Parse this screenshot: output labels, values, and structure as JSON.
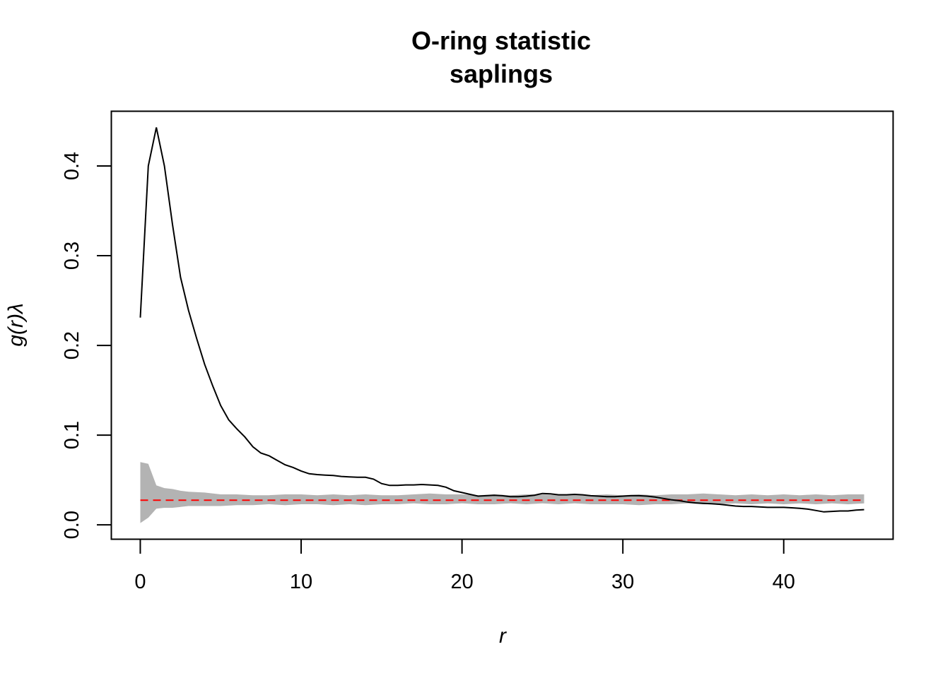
{
  "chart_data": {
    "type": "line",
    "title": "O-ring statistic",
    "subtitle": "saplings",
    "xlabel": "r",
    "ylabel": "g(r)λ",
    "xlim": [
      -1.8,
      46.8
    ],
    "ylim": [
      -0.016,
      0.461
    ],
    "xticks": [
      0,
      10,
      20,
      30,
      40
    ],
    "yticks": [
      0.0,
      0.1,
      0.2,
      0.3,
      0.4
    ],
    "ytick_labels": [
      "0.0",
      "0.1",
      "0.2",
      "0.3",
      "0.4"
    ],
    "grid": false,
    "legend": "none",
    "colors": {
      "observed": "#000000",
      "theoretical": "#ff0000",
      "envelope": "#b3b3b3",
      "frame": "#000000"
    },
    "series": [
      {
        "role": "observed",
        "style": "solid",
        "x": [
          0,
          0.5,
          1,
          1.5,
          2,
          2.5,
          3,
          3.5,
          4,
          4.5,
          5,
          5.5,
          6,
          6.5,
          7,
          7.5,
          8,
          8.5,
          9,
          9.5,
          10,
          10.5,
          11,
          11.5,
          12,
          12.5,
          13,
          13.5,
          14,
          14.5,
          15,
          15.5,
          16,
          16.5,
          17,
          17.5,
          18,
          18.5,
          19,
          19.5,
          20,
          20.5,
          21,
          21.5,
          22,
          22.5,
          23,
          23.5,
          24,
          24.5,
          25,
          25.5,
          26,
          26.5,
          27,
          27.5,
          28,
          28.5,
          29,
          29.5,
          30,
          30.5,
          31,
          31.5,
          32,
          32.5,
          33,
          33.5,
          34,
          34.5,
          35,
          35.5,
          36,
          36.5,
          37,
          37.5,
          38,
          38.5,
          39,
          39.5,
          40,
          40.5,
          41,
          41.5,
          42,
          42.5,
          43,
          43.5,
          44,
          44.5,
          45
        ],
        "y": [
          0.231,
          0.4,
          0.443,
          0.4,
          0.335,
          0.276,
          0.239,
          0.208,
          0.179,
          0.155,
          0.133,
          0.117,
          0.107,
          0.098,
          0.087,
          0.08,
          0.077,
          0.072,
          0.067,
          0.064,
          0.06,
          0.057,
          0.056,
          0.0555,
          0.055,
          0.054,
          0.0535,
          0.053,
          0.053,
          0.051,
          0.046,
          0.044,
          0.044,
          0.0445,
          0.0445,
          0.045,
          0.0445,
          0.044,
          0.042,
          0.038,
          0.036,
          0.034,
          0.032,
          0.0325,
          0.033,
          0.0325,
          0.0315,
          0.0315,
          0.032,
          0.033,
          0.035,
          0.0345,
          0.0335,
          0.0335,
          0.034,
          0.0335,
          0.0325,
          0.032,
          0.0315,
          0.0315,
          0.032,
          0.0325,
          0.0325,
          0.032,
          0.031,
          0.0295,
          0.028,
          0.027,
          0.0255,
          0.0245,
          0.024,
          0.0235,
          0.023,
          0.022,
          0.021,
          0.0205,
          0.0205,
          0.02,
          0.0195,
          0.0195,
          0.0195,
          0.019,
          0.0185,
          0.0175,
          0.016,
          0.0145,
          0.015,
          0.0155,
          0.0155,
          0.0165,
          0.017
        ]
      },
      {
        "role": "theoretical",
        "style": "dashed",
        "x": [
          0,
          45
        ],
        "y": [
          0.0275,
          0.0275
        ]
      }
    ],
    "envelope": {
      "x": [
        0,
        0.5,
        1,
        1.5,
        2,
        2.5,
        3,
        4,
        5,
        6,
        7,
        8,
        9,
        10,
        11,
        12,
        13,
        14,
        15,
        16,
        17,
        18,
        19,
        20,
        21,
        22,
        23,
        24,
        25,
        26,
        27,
        28,
        29,
        30,
        31,
        32,
        33,
        34,
        35,
        36,
        37,
        38,
        39,
        40,
        41,
        42,
        43,
        44,
        45
      ],
      "upper": [
        0.07,
        0.068,
        0.044,
        0.041,
        0.04,
        0.038,
        0.037,
        0.036,
        0.034,
        0.034,
        0.033,
        0.033,
        0.034,
        0.034,
        0.033,
        0.034,
        0.033,
        0.034,
        0.033,
        0.033,
        0.034,
        0.035,
        0.034,
        0.034,
        0.033,
        0.034,
        0.033,
        0.034,
        0.034,
        0.033,
        0.034,
        0.033,
        0.034,
        0.033,
        0.034,
        0.033,
        0.034,
        0.034,
        0.035,
        0.034,
        0.033,
        0.034,
        0.033,
        0.034,
        0.033,
        0.034,
        0.033,
        0.034,
        0.034
      ],
      "lower": [
        0.002,
        0.008,
        0.018,
        0.019,
        0.019,
        0.02,
        0.021,
        0.021,
        0.021,
        0.022,
        0.022,
        0.023,
        0.022,
        0.023,
        0.023,
        0.022,
        0.023,
        0.022,
        0.023,
        0.023,
        0.024,
        0.023,
        0.023,
        0.024,
        0.023,
        0.023,
        0.024,
        0.023,
        0.024,
        0.023,
        0.024,
        0.023,
        0.023,
        0.023,
        0.022,
        0.023,
        0.023,
        0.024,
        0.023,
        0.023,
        0.024,
        0.023,
        0.024,
        0.023,
        0.024,
        0.023,
        0.024,
        0.023,
        0.024
      ]
    }
  }
}
